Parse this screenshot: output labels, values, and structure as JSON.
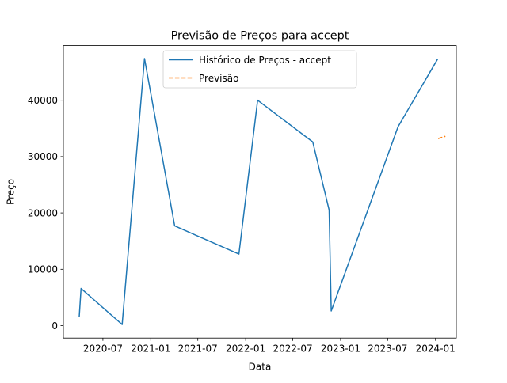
{
  "chart_data": {
    "type": "line",
    "title": "Previsão de Preços para accept",
    "xlabel": "Data",
    "ylabel": "Preço",
    "x_axis_type": "date",
    "xlim": [
      "2020-01-31",
      "2024-03-21"
    ],
    "ylim": [
      -2200,
      49700
    ],
    "x_ticks": [
      "2020-07",
      "2021-01",
      "2021-07",
      "2022-01",
      "2022-07",
      "2023-01",
      "2023-07",
      "2024-01"
    ],
    "y_ticks": [
      0,
      10000,
      20000,
      30000,
      40000
    ],
    "grid": false,
    "legend_position": "top-center",
    "series": [
      {
        "name": "Histórico de Preços - accept",
        "color": "#1f77b4",
        "line_style": "solid",
        "points": [
          [
            "2020-04-01",
            1600
          ],
          [
            "2020-04-08",
            6600
          ],
          [
            "2020-09-13",
            200
          ],
          [
            "2020-12-08",
            47400
          ],
          [
            "2021-04-03",
            17700
          ],
          [
            "2021-12-06",
            12700
          ],
          [
            "2022-02-16",
            40000
          ],
          [
            "2022-09-16",
            32600
          ],
          [
            "2022-11-18",
            20500
          ],
          [
            "2022-11-26",
            2600
          ],
          [
            "2023-08-10",
            35300
          ],
          [
            "2024-01-09",
            47300
          ]
        ]
      },
      {
        "name": "Previsão",
        "color": "#ff7f0e",
        "line_style": "dashed",
        "points": [
          [
            "2024-01-11",
            33200
          ],
          [
            "2024-02-08",
            33600
          ]
        ]
      }
    ]
  }
}
